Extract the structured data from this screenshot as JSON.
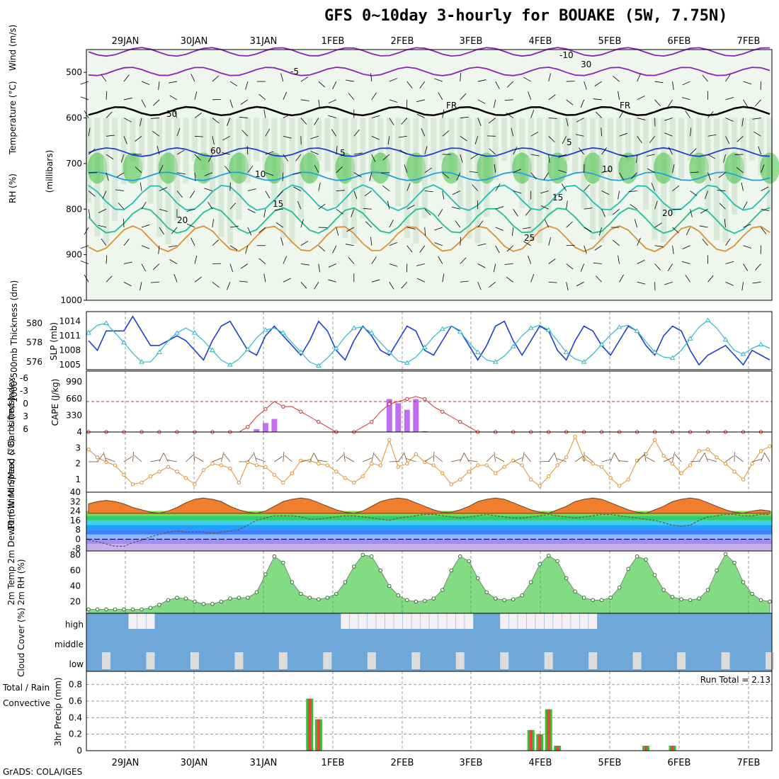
{
  "title": "GFS 0~10day 3-hourly for BOUAKE (5W, 7.75N)",
  "footer": "GrADS: COLA/IGES",
  "dates": [
    "29JAN",
    "30JAN",
    "31JAN",
    "1FEB",
    "2FEB",
    "3FEB",
    "4FEB",
    "5FEB",
    "6FEB",
    "7FEB"
  ],
  "colors": {
    "rh_green": "#3fbf3f",
    "temp_blue": "#1f3fcf",
    "temp_cyan": "#1fa0e0",
    "temp_teal": "#1fc0b0",
    "temp_orange": "#e0902f",
    "temp_magenta": "#d0208f",
    "purple": "#8f1fbf",
    "slp": "#1f3fcf",
    "thick": "#2fb8c8",
    "lifted": "#d02f2f",
    "cape": "#bf6fef",
    "wind": "#e0902f",
    "rh2m": "#1fbf1f",
    "cloud": "#6fa8d8",
    "precip_green": "#2fbf2f",
    "precip_red": "#ef3f3f"
  },
  "chart_data": [
    {
      "type": "heatmap",
      "panel": "upper-air",
      "title": "",
      "ylabels": [
        "Wind (m/s)",
        "Temperature (°C)",
        "RH (%)"
      ],
      "yaxis_label": "(millibars)",
      "y_ticks": [
        500,
        600,
        700,
        800,
        900,
        1000
      ],
      "ylim": [
        450,
        1000
      ],
      "x_ticks": [
        "29JAN",
        "30JAN",
        "31JAN",
        "1FEB",
        "2FEB",
        "3FEB",
        "4FEB",
        "5FEB",
        "6FEB",
        "7FEB"
      ],
      "contour_labels": [
        "-10",
        "-5",
        "5",
        "5",
        "10",
        "10",
        "15",
        "15",
        "20",
        "20",
        "25",
        "FR",
        "FR",
        "30",
        "50",
        "60"
      ],
      "isotherm_levels": [
        {
          "value": -10,
          "mb": 455
        },
        {
          "value": -5,
          "mb": 498
        },
        {
          "value": 0,
          "mb": 585
        },
        {
          "value": 5,
          "mb": 675
        },
        {
          "value": 10,
          "mb": 728
        },
        {
          "value": 15,
          "mb": 775
        },
        {
          "value": 20,
          "mb": 825
        },
        {
          "value": 25,
          "mb": 865
        }
      ]
    },
    {
      "type": "line",
      "panel": "slp-thickness",
      "ylabel_left": "1000-500mb Thickness (dm)",
      "ylabel_right": "SLP (mb)",
      "left_ticks": [
        576,
        578,
        580
      ],
      "right_ticks": [
        1005,
        1008,
        1011,
        1014
      ],
      "left_lim": [
        575.2,
        581.2
      ],
      "right_lim": [
        1004,
        1016
      ],
      "series": [
        {
          "name": "SLP (mb)",
          "values": [
            1010,
            1008,
            1012,
            1012,
            1012,
            1015,
            1012,
            1009,
            1009,
            1010,
            1011,
            1010,
            1008,
            1006,
            1010,
            1013,
            1014,
            1011,
            1008,
            1007,
            1011,
            1013,
            1011,
            1009,
            1007,
            1010,
            1014,
            1012,
            1008,
            1006,
            1010,
            1013,
            1011,
            1008,
            1007,
            1010,
            1013,
            1012,
            1008,
            1007,
            1010,
            1013,
            1012,
            1009,
            1006,
            1009,
            1013,
            1014,
            1010,
            1007,
            1010,
            1013,
            1012,
            1008,
            1006,
            1010,
            1013,
            1012,
            1009,
            1007,
            1010,
            1013,
            1012,
            1009,
            1007,
            1011,
            1013,
            1012,
            1008,
            1005,
            1007,
            1008,
            1009,
            1007,
            1005,
            1008,
            1007,
            1006
          ]
        },
        {
          "name": "1000-500mb Thickness (dm)",
          "values": [
            579.0,
            579.8,
            580.0,
            579.0,
            578.0,
            576.9,
            576.0,
            576.0,
            577.0,
            578.2,
            579.0,
            579.5,
            579.0,
            578.2,
            577.2,
            576.2,
            575.7,
            576.3,
            577.3,
            578.5,
            579.3,
            579.5,
            579.0,
            578.0,
            577.0,
            576.0,
            575.6,
            576.4,
            577.4,
            578.6,
            579.5,
            579.6,
            579.0,
            578.0,
            577.0,
            576.1,
            575.9,
            576.5,
            577.5,
            578.6,
            579.4,
            579.7,
            579.1,
            578.0,
            577.0,
            576.2,
            576.0,
            576.6,
            577.6,
            578.7,
            579.5,
            579.8,
            579.3,
            578.2,
            577.0,
            576.3,
            576.0,
            576.8,
            577.8,
            578.8,
            579.6,
            579.8,
            579.2,
            578.1,
            577.0,
            576.5,
            576.4,
            577.2,
            578.4,
            579.6,
            580.3,
            579.5,
            578.3,
            577.2,
            576.8,
            577.4,
            577.8,
            577.4
          ]
        }
      ]
    },
    {
      "type": "bar",
      "panel": "cape-lifted-index",
      "ylabel_left": "Lifted Index",
      "ylabel_right": "CAPE (J/kg)",
      "left_ticks": [
        "-6",
        "-3",
        "0",
        "3",
        "6"
      ],
      "right_ticks": [
        4,
        330,
        660,
        990
      ],
      "series": [
        {
          "name": "CAPE (J/kg)",
          "values": [
            0,
            0,
            0,
            0,
            0,
            0,
            0,
            0,
            0,
            0,
            0,
            0,
            0,
            0,
            0,
            0,
            0,
            0,
            10,
            60,
            180,
            260,
            0,
            0,
            0,
            0,
            0,
            0,
            0,
            0,
            0,
            0,
            0,
            10,
            650,
            570,
            440,
            650,
            20,
            0,
            0,
            0,
            0,
            0,
            0,
            0,
            0,
            0,
            0,
            0,
            0,
            0,
            0,
            0,
            0,
            0,
            0,
            0,
            0,
            0,
            0,
            0,
            0,
            0,
            0,
            0,
            0,
            0,
            0,
            0,
            0,
            0,
            0,
            0,
            0,
            0,
            0,
            0
          ]
        },
        {
          "name": "Lifted Index",
          "values": [
            6,
            6,
            6,
            6,
            6,
            6,
            6,
            6,
            6,
            6,
            6,
            6,
            6,
            6,
            6,
            6,
            6,
            6,
            5,
            3,
            1.5,
            0,
            1,
            1,
            2,
            3,
            4,
            5,
            6,
            6,
            6,
            5,
            4,
            2,
            0.5,
            0,
            -0.5,
            -1,
            -0.5,
            1,
            2,
            3,
            4,
            5,
            6,
            6,
            6,
            6,
            6,
            6,
            6,
            6,
            6,
            6,
            6,
            6,
            6,
            6,
            6,
            6,
            6,
            6,
            6,
            6,
            6,
            6,
            6,
            6,
            6,
            6,
            6,
            6,
            6,
            6,
            6,
            6,
            6,
            6
          ]
        }
      ]
    },
    {
      "type": "line",
      "panel": "wind-10m",
      "ylabel": "10m Wind Speed & Barbs (m/s)",
      "y_ticks": [
        1,
        2,
        3
      ],
      "ylim": [
        0.2,
        4.0
      ],
      "series": [
        {
          "name": "10m Wind Speed",
          "values": [
            2.9,
            2.4,
            2.1,
            1.9,
            1.3,
            0.7,
            0.8,
            1.2,
            1.5,
            1.8,
            1.5,
            1.1,
            0.7,
            1.6,
            2.0,
            1.9,
            1.7,
            0.8,
            2.1,
            1.9,
            1.8,
            1.3,
            0.8,
            1.4,
            2.2,
            2.2,
            2.0,
            1.9,
            1.5,
            1.1,
            0.8,
            1.2,
            2.0,
            1.9,
            3.5,
            1.8,
            2.0,
            2.6,
            2.1,
            1.9,
            1.4,
            0.7,
            1.0,
            1.5,
            1.9,
            1.9,
            1.4,
            1.8,
            2.2,
            1.9,
            1.0,
            0.6,
            1.2,
            1.9,
            2.4,
            3.7,
            2.3,
            2.0,
            1.8,
            1.1,
            0.6,
            1.0,
            2.2,
            2.6,
            3.5,
            2.5,
            2.0,
            1.4,
            1.9,
            2.8,
            2.9,
            2.4,
            2.0,
            1.5,
            1.0,
            2.0,
            2.8,
            3.1
          ]
        }
      ]
    },
    {
      "type": "area",
      "panel": "temp-2m",
      "ylabel": "2m Temp 2m DewPt (6hr Min/Max) (°C)",
      "y_ticks": [
        -8,
        0,
        8,
        16,
        24,
        32,
        40
      ],
      "ylim": [
        -10,
        40
      ],
      "series": [
        {
          "name": "2m Temp",
          "values": [
            30,
            32,
            33,
            32,
            30,
            27,
            25,
            23,
            22,
            24,
            27,
            31,
            34,
            35,
            34,
            32,
            28,
            25,
            23,
            22,
            24,
            28,
            32,
            34,
            35,
            34,
            31,
            28,
            25,
            23,
            22,
            24,
            28,
            32,
            34,
            35,
            34,
            31,
            28,
            25,
            23,
            23,
            25,
            28,
            32,
            34,
            35,
            34,
            31,
            28,
            25,
            23,
            22,
            25,
            28,
            32,
            34,
            35,
            34,
            31,
            28,
            25,
            23,
            22,
            25,
            28,
            32,
            34,
            35,
            34,
            31,
            28,
            25,
            23,
            22,
            24,
            25,
            24
          ]
        },
        {
          "name": "2m DewPt",
          "values": [
            -1,
            -2,
            -4,
            -6,
            -6,
            -3,
            -1,
            2,
            4,
            6,
            7,
            6,
            6,
            6,
            5,
            6,
            7,
            8,
            12,
            16,
            18,
            20,
            20,
            20,
            19,
            17,
            17,
            18,
            19,
            20,
            20,
            19,
            18,
            17,
            16,
            18,
            19,
            20,
            21,
            21,
            20,
            19,
            18,
            19,
            20,
            21,
            20,
            19,
            18,
            18,
            19,
            20,
            21,
            20,
            19,
            18,
            19,
            20,
            21,
            21,
            20,
            19,
            18,
            17,
            16,
            14,
            12,
            11,
            12,
            16,
            19,
            20,
            21,
            21,
            20,
            20,
            21,
            21
          ]
        }
      ]
    },
    {
      "type": "area",
      "panel": "rh-2m",
      "ylabel": "2m RH (%)",
      "y_ticks": [
        20,
        40,
        60,
        80
      ],
      "ylim": [
        5,
        85
      ],
      "series": [
        {
          "name": "2m RH",
          "values": [
            10,
            10,
            10,
            10,
            10,
            10,
            10,
            12,
            16,
            22,
            25,
            24,
            20,
            17,
            17,
            20,
            24,
            25,
            25,
            32,
            55,
            78,
            70,
            45,
            30,
            25,
            23,
            25,
            30,
            45,
            65,
            80,
            78,
            60,
            40,
            28,
            22,
            20,
            21,
            24,
            35,
            60,
            78,
            72,
            50,
            32,
            24,
            22,
            23,
            28,
            45,
            68,
            79,
            72,
            50,
            33,
            25,
            22,
            22,
            25,
            38,
            62,
            78,
            74,
            54,
            35,
            26,
            23,
            22,
            24,
            35,
            60,
            81,
            70,
            45,
            30,
            22,
            20
          ]
        }
      ]
    },
    {
      "type": "bar",
      "panel": "cloud-cover",
      "ylabel": "Cloud Cover (%)",
      "categories": [
        "high",
        "middle",
        "low"
      ]
    },
    {
      "type": "bar",
      "panel": "precip",
      "ylabel": "3hr Precip (mm)",
      "legend": [
        "Total / Rain",
        "Convective"
      ],
      "annotation": "Run Total = 2.13",
      "y_ticks": [
        0,
        0.2,
        0.4,
        0.6,
        0.8
      ],
      "ylim": [
        0,
        0.96
      ],
      "values": [
        0,
        0,
        0,
        0,
        0,
        0,
        0,
        0,
        0,
        0,
        0,
        0,
        0,
        0,
        0,
        0,
        0,
        0,
        0,
        0,
        0,
        0,
        0,
        0,
        0,
        0.63,
        0.38,
        0,
        0,
        0,
        0,
        0,
        0,
        0,
        0,
        0,
        0,
        0,
        0,
        0,
        0,
        0,
        0,
        0,
        0,
        0,
        0,
        0,
        0,
        0,
        0.25,
        0.2,
        0.5,
        0.06,
        0,
        0,
        0,
        0,
        0,
        0,
        0,
        0,
        0,
        0.06,
        0,
        0,
        0.06,
        0,
        0,
        0,
        0,
        0,
        0,
        0,
        0,
        0,
        0,
        0
      ]
    }
  ]
}
